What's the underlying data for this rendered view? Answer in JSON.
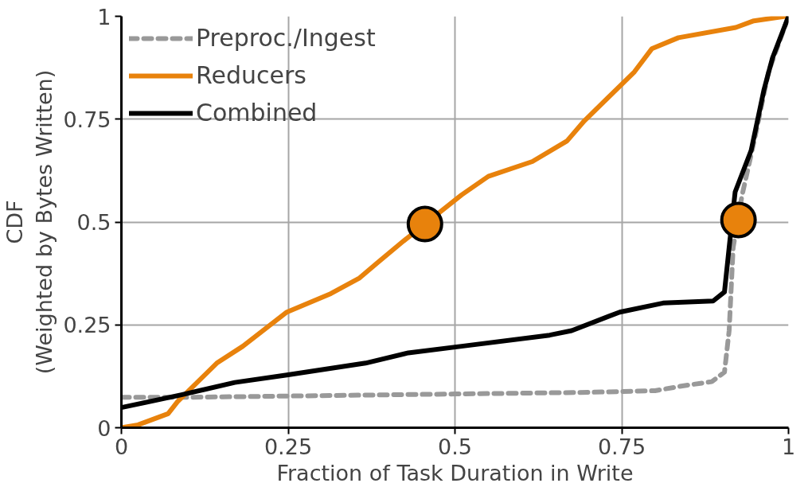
{
  "chart_data": {
    "type": "line",
    "xlabel": "Fraction of Task Duration in Write",
    "ylabel": "CDF\n(Weighted by Bytes Written)",
    "xlim": [
      0,
      1
    ],
    "ylim": [
      0,
      1
    ],
    "xticks": [
      0,
      0.25,
      0.5,
      0.75,
      1
    ],
    "yticks": [
      0,
      0.25,
      0.5,
      0.75,
      1
    ],
    "grid": true,
    "legend": "top left",
    "series": [
      {
        "name": "Preproc./Ingest",
        "color": "#999999",
        "line_style": "dashed",
        "x": [
          0,
          0.1,
          0.3,
          0.5,
          0.7,
          0.8,
          0.839,
          0.885,
          0.904,
          0.911,
          0.917,
          0.93,
          0.95,
          0.97,
          1
        ],
        "values": [
          0.074,
          0.074,
          0.078,
          0.082,
          0.086,
          0.09,
          0.101,
          0.112,
          0.135,
          0.236,
          0.438,
          0.562,
          0.708,
          0.865,
          1
        ]
      },
      {
        "name": "Reducers",
        "color": "#e8820c",
        "line_style": "solid",
        "x": [
          0,
          0.025,
          0.07,
          0.084,
          0.143,
          0.182,
          0.248,
          0.314,
          0.357,
          0.383,
          0.423,
          0.454,
          0.51,
          0.55,
          0.616,
          0.668,
          0.694,
          0.769,
          0.795,
          0.835,
          0.921,
          0.948,
          0.995
        ],
        "values": [
          0,
          0.007,
          0.034,
          0.063,
          0.157,
          0.198,
          0.281,
          0.326,
          0.364,
          0.4,
          0.454,
          0.494,
          0.566,
          0.611,
          0.647,
          0.697,
          0.746,
          0.865,
          0.921,
          0.948,
          0.973,
          0.989,
          1
        ]
      },
      {
        "name": "Combined",
        "color": "#000000",
        "line_style": "solid",
        "x": [
          0,
          0.09,
          0.17,
          0.248,
          0.366,
          0.43,
          0.51,
          0.642,
          0.675,
          0.747,
          0.812,
          0.887,
          0.904,
          0.911,
          0.92,
          0.944,
          0.963,
          0.976,
          1
        ],
        "values": [
          0.049,
          0.08,
          0.11,
          0.128,
          0.157,
          0.182,
          0.198,
          0.225,
          0.236,
          0.281,
          0.303,
          0.308,
          0.33,
          0.438,
          0.573,
          0.674,
          0.82,
          0.899,
          1
        ]
      },
      {
        "type": "scatter",
        "marker": "circle",
        "color": "#e8820c",
        "x": [
          0.455,
          0.925
        ],
        "values": [
          0.495,
          0.505
        ]
      }
    ]
  }
}
